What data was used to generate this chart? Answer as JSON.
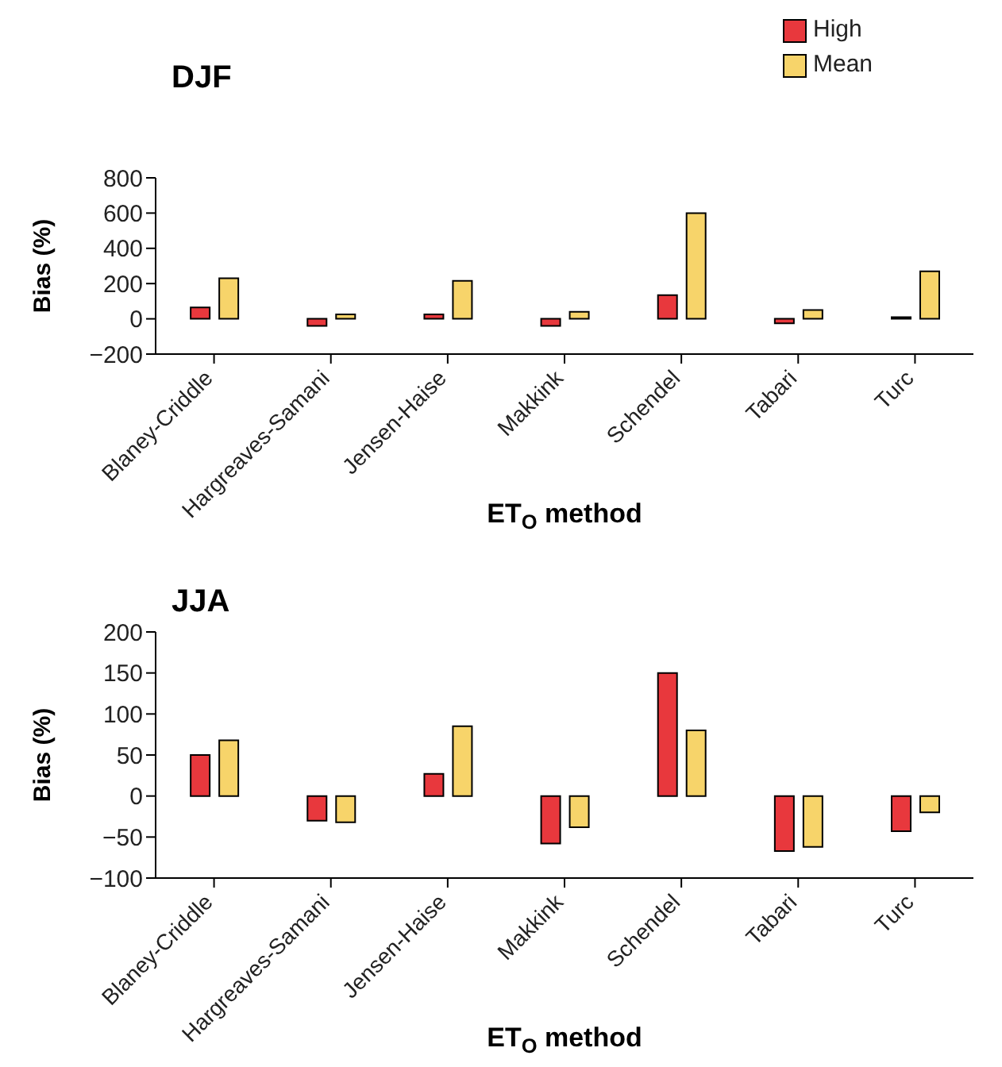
{
  "chart_data": [
    {
      "type": "bar",
      "title": "DJF",
      "xlabel": "ET$_{O}$ method",
      "ylabel": "Bias (%)",
      "categories": [
        "Blaney-Criddle",
        "Hargreaves-Samani",
        "Jensen-Haise",
        "Makkink",
        "Schendel",
        "Tabari",
        "Turc"
      ],
      "series": [
        {
          "name": "High",
          "color": "#e8383d",
          "values": [
            65,
            -40,
            25,
            -40,
            135,
            -25,
            10
          ]
        },
        {
          "name": "Mean",
          "color": "#f7d46a",
          "values": [
            230,
            25,
            215,
            40,
            600,
            50,
            270
          ]
        }
      ],
      "ylim": [
        -200,
        800
      ],
      "yticks": [
        {
          "value": -200,
          "label": "−200"
        },
        0,
        200,
        400,
        600,
        800
      ],
      "grid": false,
      "legend": "top right"
    },
    {
      "type": "bar",
      "title": "JJA",
      "xlabel": "ET$_{O}$ method",
      "ylabel": "Bias (%)",
      "categories": [
        "Blaney-Criddle",
        "Hargreaves-Samani",
        "Jensen-Haise",
        "Makkink",
        "Schendel",
        "Tabari",
        "Turc"
      ],
      "series": [
        {
          "color": "#e8383d",
          "values": [
            50,
            -30,
            27,
            -58,
            150,
            -67,
            -43
          ]
        },
        {
          "color": "#f7d46a",
          "values": [
            68,
            -32,
            85,
            -38,
            80,
            -62,
            -20
          ]
        }
      ],
      "ylim": [
        -100,
        200
      ],
      "yticks": [
        {
          "value": -100,
          "label": "−100"
        },
        {
          "value": -50,
          "label": "−50"
        },
        0,
        50,
        100,
        150,
        200
      ],
      "grid": false,
      "legend": false
    }
  ]
}
